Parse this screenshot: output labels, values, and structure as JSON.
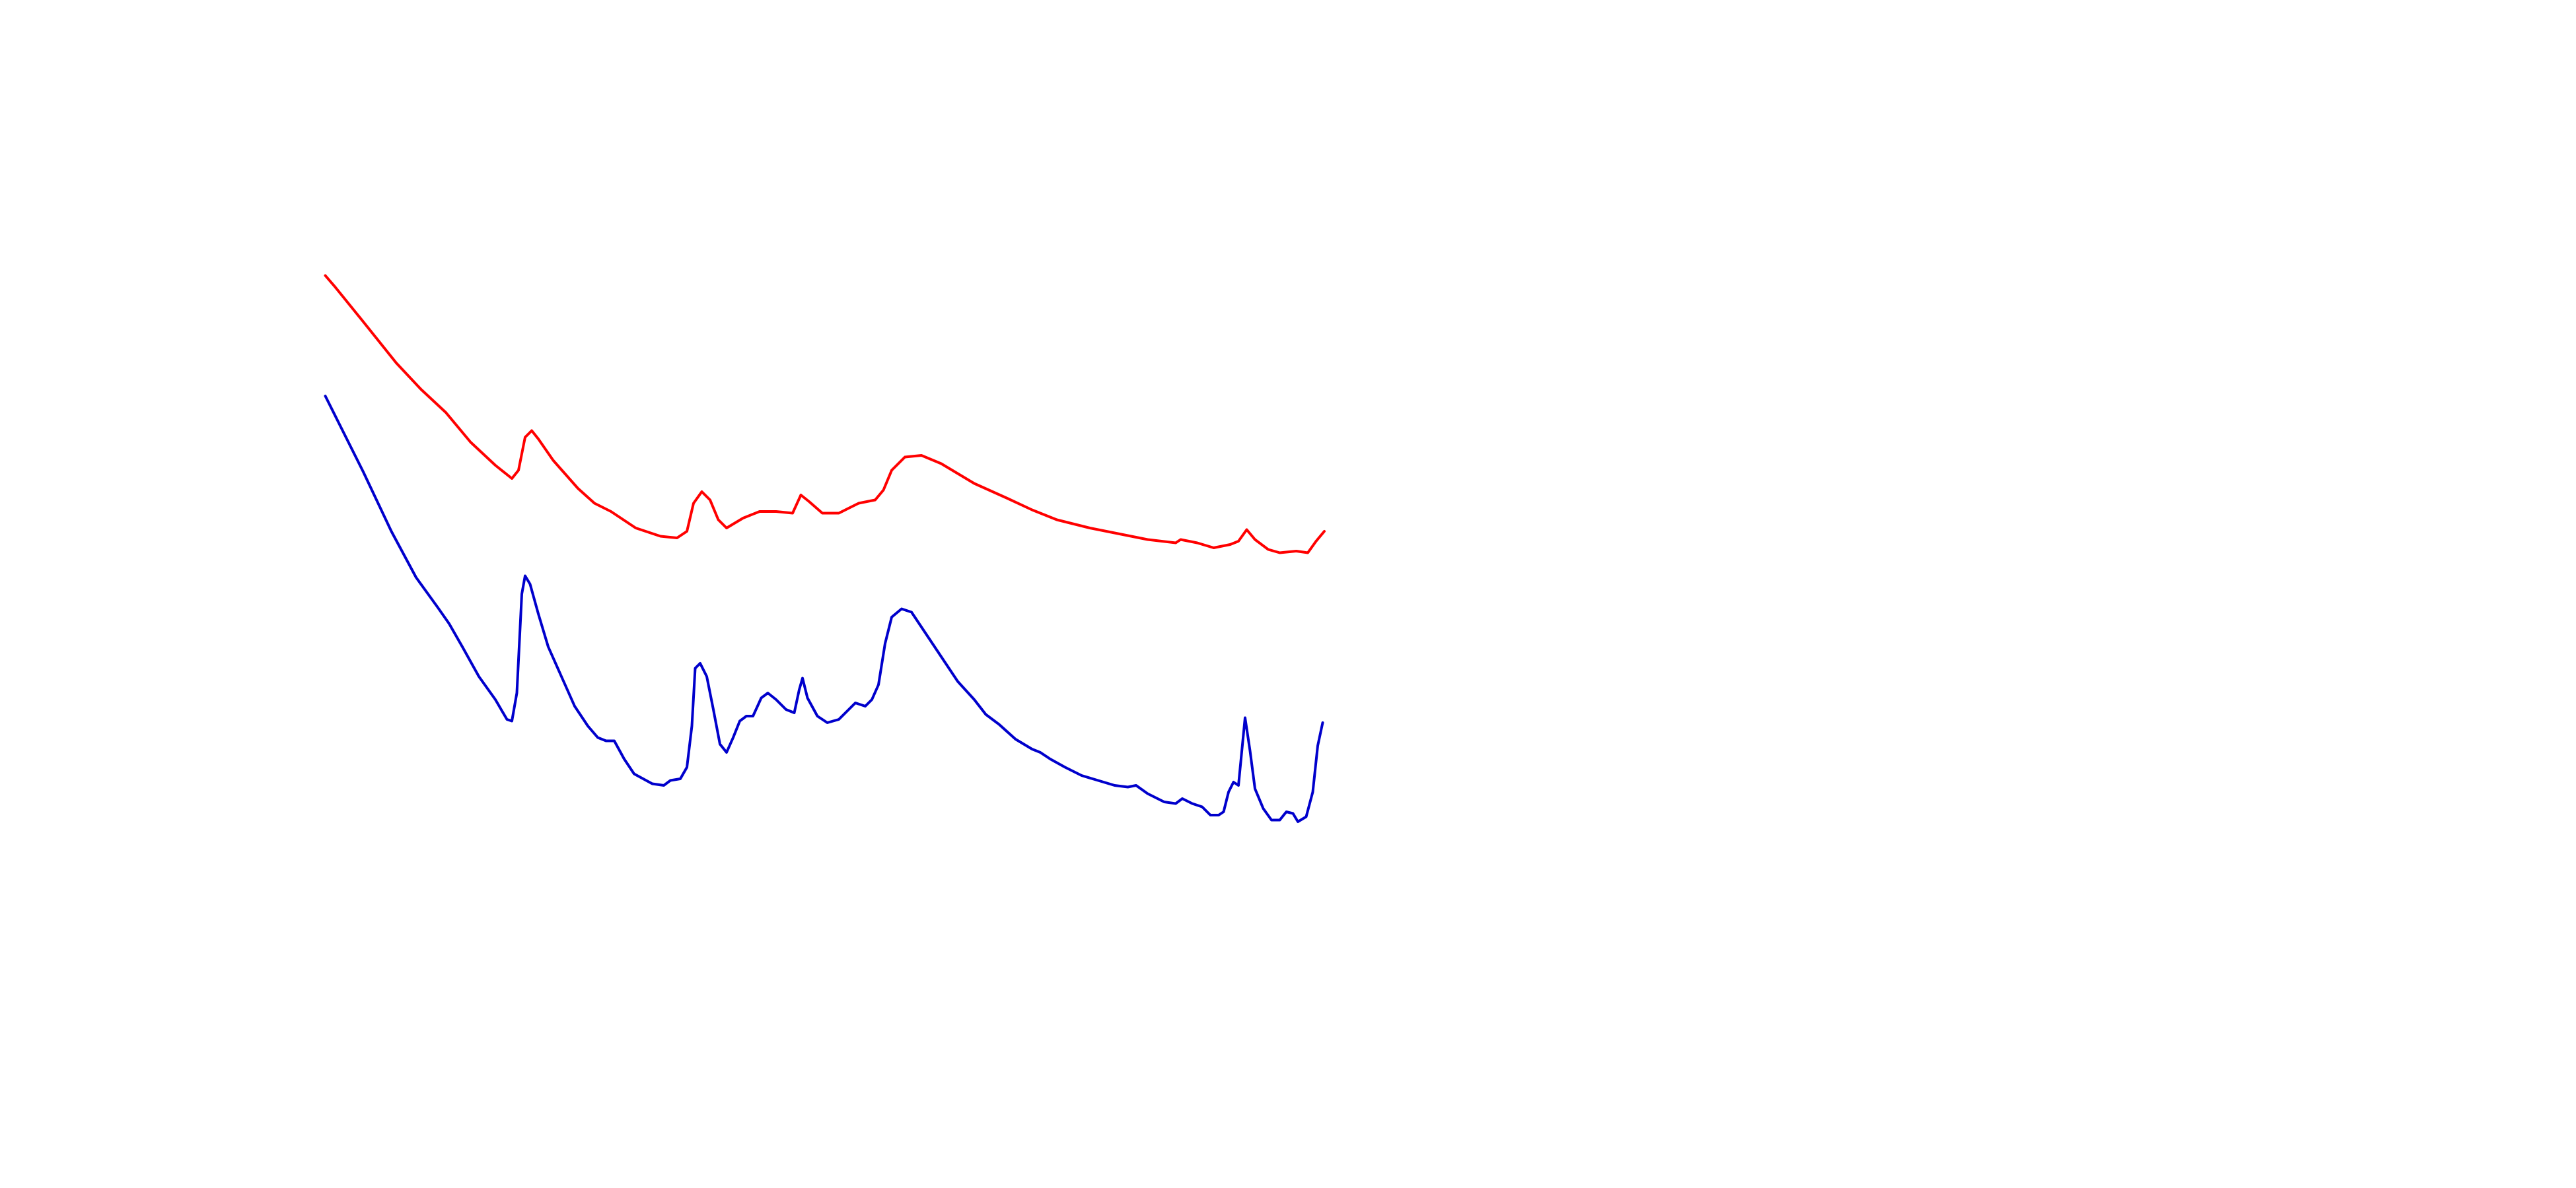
{
  "chart_data": {
    "type": "line",
    "xlim": [
      0,
      1560
    ],
    "ylim": [
      0,
      720
    ],
    "series": [
      {
        "color": "#ff0000",
        "x": [
          197,
          203,
          220,
          240,
          255,
          270,
          285,
          300,
          310,
          314,
          318,
          322,
          326,
          335,
          350,
          360,
          370,
          385,
          400,
          410,
          416,
          420,
          425,
          430,
          435,
          440,
          450,
          460,
          470,
          480,
          485,
          490,
          498,
          508,
          520,
          530,
          535,
          540,
          548,
          558,
          570,
          590,
          610,
          625,
          640,
          660,
          680,
          695,
          712,
          715,
          725,
          735,
          745,
          750,
          755,
          760,
          768,
          775,
          785,
          792,
          797,
          802
        ],
        "values": [
          553,
          546,
          525,
          500,
          484,
          470,
          452,
          438,
          430,
          435,
          455,
          459,
          454,
          441,
          424,
          415,
          410,
          400,
          395,
          394,
          398,
          415,
          422,
          417,
          405,
          400,
          406,
          410,
          410,
          409,
          420,
          416,
          409,
          409,
          415,
          417,
          423,
          435,
          443,
          444,
          439,
          427,
          418,
          411,
          405,
          400,
          396,
          393,
          391,
          393,
          391,
          388,
          390,
          392,
          399,
          393,
          387,
          385,
          386,
          385,
          392,
          398
        ]
      },
      {
        "color": "#0000cc",
        "x": [
          197,
          205,
          220,
          237,
          252,
          265,
          272,
          280,
          290,
          300,
          307,
          310,
          313,
          316,
          318,
          321,
          326,
          332,
          340,
          348,
          356,
          362,
          367,
          372,
          378,
          384,
          395,
          402,
          406,
          412,
          416,
          419,
          421,
          424,
          428,
          432,
          436,
          440,
          444,
          448,
          452,
          456,
          461,
          465,
          470,
          476,
          481,
          484,
          486,
          489,
          495,
          501,
          508,
          514,
          518,
          524,
          528,
          532,
          536,
          540,
          546,
          552,
          560,
          570,
          580,
          590,
          597,
          605,
          615,
          625,
          630,
          636,
          645,
          655,
          665,
          675,
          683,
          688,
          695,
          705,
          712,
          716,
          722,
          728,
          733,
          738,
          741,
          744,
          747,
          750,
          754,
          757,
          760,
          765,
          770,
          775,
          779,
          783,
          786,
          791,
          795,
          798,
          801
        ],
        "values": [
          480,
          464,
          434,
          398,
          370,
          352,
          342,
          328,
          310,
          296,
          284,
          283,
          300,
          360,
          371,
          366,
          348,
          328,
          310,
          292,
          280,
          273,
          271,
          271,
          260,
          251,
          245,
          244,
          247,
          248,
          255,
          280,
          315,
          318,
          310,
          290,
          269,
          264,
          273,
          283,
          286,
          286,
          297,
          300,
          296,
          290,
          288,
          302,
          309,
          297,
          286,
          282,
          284,
          290,
          294,
          292,
          296,
          305,
          330,
          346,
          351,
          349,
          337,
          322,
          307,
          296,
          287,
          281,
          272,
          266,
          264,
          260,
          255,
          250,
          247,
          244,
          243,
          244,
          239,
          234,
          233,
          236,
          233,
          231,
          226,
          226,
          228,
          240,
          246,
          244,
          285,
          265,
          242,
          230,
          223,
          223,
          228,
          227,
          222,
          225,
          240,
          268,
          282
        ]
      }
    ]
  }
}
